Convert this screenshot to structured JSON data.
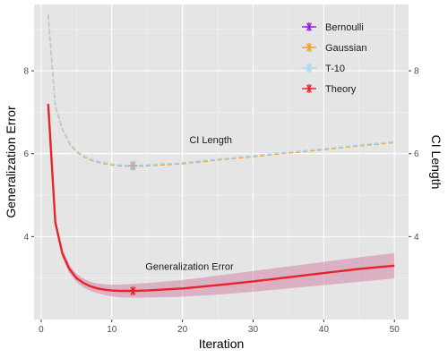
{
  "chart_data": {
    "type": "line",
    "x_axis": {
      "label": "Iteration",
      "range": [
        -1,
        52
      ],
      "ticks": [
        0,
        10,
        20,
        30,
        40,
        50
      ]
    },
    "y_left": {
      "label": "Generalization Error",
      "range": [
        2.0,
        9.6
      ],
      "ticks": [
        4,
        6,
        8
      ]
    },
    "y_right": {
      "label": "CI Length",
      "range": [
        2.0,
        9.6
      ],
      "ticks": [
        4,
        6,
        8
      ]
    },
    "annotations": [
      {
        "text": "CI Length",
        "x": 24,
        "y": 6.25
      },
      {
        "text": "Generalization Error",
        "x": 21,
        "y": 3.2
      }
    ],
    "legend": {
      "position": "top-right",
      "entries": [
        {
          "name": "Bernoulli",
          "color": "#8B19F0"
        },
        {
          "name": "Gaussian",
          "color": "#F5A01E"
        },
        {
          "name": "T-10",
          "color": "#A6D8EE"
        },
        {
          "name": "Theory",
          "color": "#E8232A"
        }
      ]
    },
    "series": [
      {
        "name": "Theory",
        "role": "generalization error",
        "color": "#E8232A",
        "x": [
          1,
          2,
          3,
          4,
          5,
          6,
          7,
          8,
          9,
          10,
          11,
          12,
          13,
          15,
          20,
          25,
          30,
          35,
          40,
          45,
          50
        ],
        "y": [
          7.2,
          4.35,
          3.6,
          3.22,
          3.0,
          2.88,
          2.8,
          2.75,
          2.72,
          2.7,
          2.69,
          2.69,
          2.69,
          2.7,
          2.75,
          2.83,
          2.92,
          3.02,
          3.12,
          3.22,
          3.3
        ],
        "band_lower": [
          7.1,
          4.25,
          3.5,
          3.12,
          2.9,
          2.77,
          2.69,
          2.63,
          2.59,
          2.56,
          2.54,
          2.53,
          2.53,
          2.53,
          2.55,
          2.6,
          2.67,
          2.75,
          2.83,
          2.91,
          2.99
        ],
        "band_upper": [
          7.3,
          4.45,
          3.7,
          3.32,
          3.1,
          2.99,
          2.91,
          2.87,
          2.85,
          2.84,
          2.84,
          2.85,
          2.86,
          2.88,
          2.95,
          3.06,
          3.17,
          3.28,
          3.39,
          3.5,
          3.6
        ],
        "marker": {
          "x": 13,
          "y": 2.69
        }
      },
      {
        "name": "Gaussian",
        "role": "CI length",
        "color": "#F5A01E",
        "x": [
          1,
          2,
          3,
          4,
          5,
          6,
          7,
          8,
          9,
          10,
          11,
          12,
          13,
          15,
          20,
          25,
          30,
          35,
          40,
          45,
          50
        ],
        "y": [
          9.35,
          7.15,
          6.6,
          6.25,
          6.05,
          5.93,
          5.85,
          5.8,
          5.76,
          5.73,
          5.71,
          5.7,
          5.7,
          5.71,
          5.76,
          5.85,
          5.93,
          6.02,
          6.1,
          6.19,
          6.27
        ],
        "marker": {
          "x": 13,
          "y": 5.7
        }
      },
      {
        "name": "T-10",
        "role": "CI length",
        "color": "#A6D8EE",
        "x": [
          1,
          2,
          3,
          4,
          5,
          6,
          7,
          8,
          9,
          10,
          11,
          12,
          13,
          15,
          20,
          25,
          30,
          35,
          40,
          45,
          50
        ],
        "y": [
          9.37,
          7.17,
          6.62,
          6.27,
          6.07,
          5.95,
          5.87,
          5.82,
          5.78,
          5.75,
          5.73,
          5.72,
          5.72,
          5.73,
          5.78,
          5.87,
          5.95,
          6.04,
          6.12,
          6.21,
          6.29
        ],
        "marker": {
          "x": 13,
          "y": 5.72
        }
      }
    ]
  }
}
